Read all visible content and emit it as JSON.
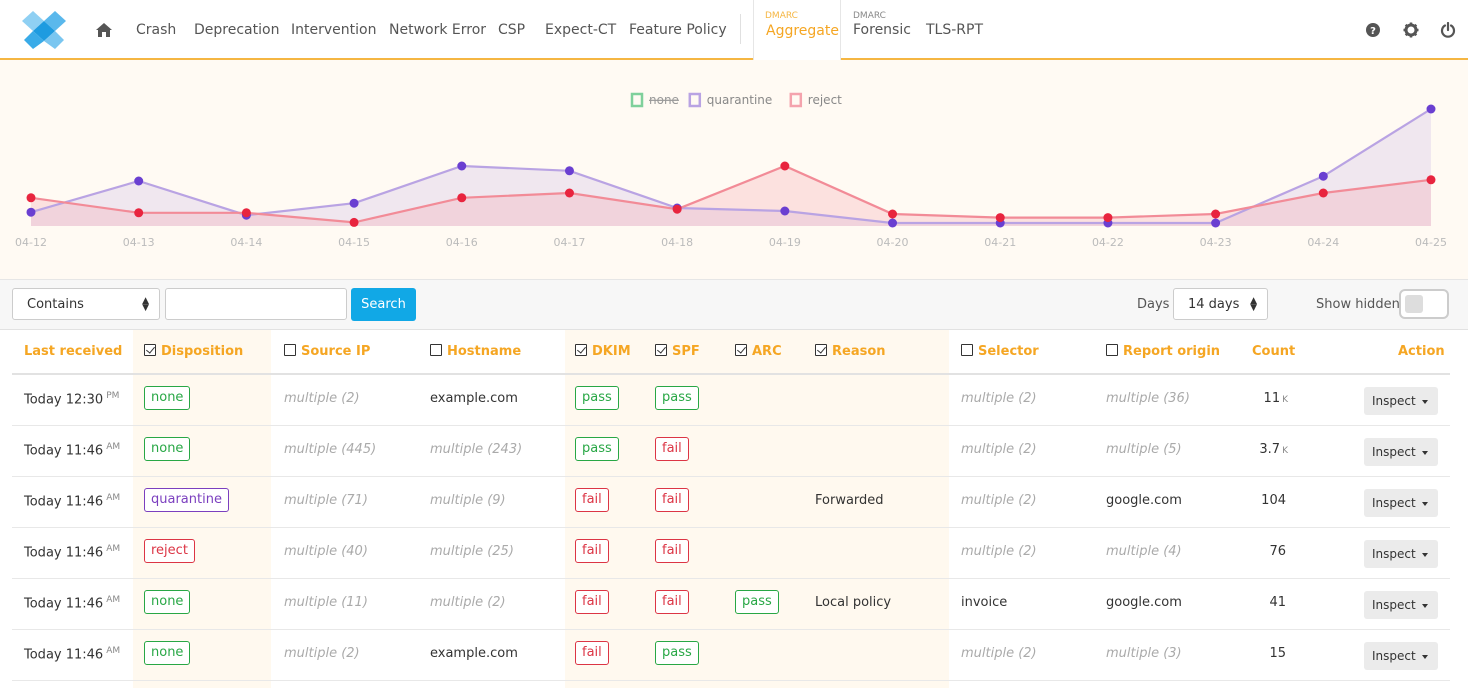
{
  "nav": {
    "items": [
      "Crash",
      "Deprecation",
      "Intervention",
      "Network Error",
      "CSP",
      "Expect-CT",
      "Feature Policy"
    ],
    "active_sup": "DMARC",
    "active_label": "Aggregate",
    "forensic_sup": "DMARC",
    "forensic_label": "Forensic",
    "tlsrpt_label": "TLS-RPT"
  },
  "chart_data": {
    "type": "area",
    "categories": [
      "04-12",
      "04-13",
      "04-14",
      "04-15",
      "04-16",
      "04-17",
      "04-18",
      "04-19",
      "04-20",
      "04-21",
      "04-22",
      "04-23",
      "04-24",
      "04-25"
    ],
    "legend": [
      {
        "name": "none",
        "color": "#7fd09b",
        "hidden": true
      },
      {
        "name": "quarantine",
        "color": "#b9a3e3",
        "hidden": false
      },
      {
        "name": "reject",
        "color": "#f4a3ad",
        "hidden": false
      }
    ],
    "series": [
      {
        "name": "quarantine",
        "line_color": "#b9a3e3",
        "fill": "rgba(185,163,227,0.22)",
        "point_color": "#6a3fd1",
        "values": [
          2.3,
          7.5,
          1.8,
          3.8,
          10.0,
          9.2,
          3.0,
          2.5,
          0.5,
          0.5,
          0.5,
          0.5,
          8.3,
          19.5
        ]
      },
      {
        "name": "reject",
        "line_color": "#f28b97",
        "fill": "rgba(244,163,173,0.28)",
        "point_color": "#e8243e",
        "values": [
          4.7,
          2.2,
          2.2,
          0.6,
          4.7,
          5.5,
          2.8,
          10.0,
          2.0,
          1.4,
          1.4,
          2.0,
          5.5,
          7.7
        ]
      }
    ],
    "ylim": [
      0,
      21
    ]
  },
  "filter": {
    "mode": "Contains",
    "query": "",
    "search_label": "Search",
    "days_label": "Days",
    "days_value": "14 days",
    "show_hidden_label": "Show hidden"
  },
  "table": {
    "headers": {
      "last_received": "Last received",
      "disposition": "Disposition",
      "source_ip": "Source IP",
      "hostname": "Hostname",
      "dkim": "DKIM",
      "spf": "SPF",
      "arc": "ARC",
      "reason": "Reason",
      "selector": "Selector",
      "report_origin": "Report origin",
      "count": "Count",
      "action": "Action"
    },
    "inspect_label": "Inspect",
    "rows": [
      {
        "time": "Today 12:30",
        "ampm": "PM",
        "disposition": "none",
        "source_ip": "multiple (2)",
        "hostname": "example.com",
        "dkim": "pass",
        "spf": "pass",
        "arc": "",
        "reason": "",
        "selector": "multiple (2)",
        "origin": "multiple (36)",
        "count": "11",
        "count_unit": "K"
      },
      {
        "time": "Today 11:46",
        "ampm": "AM",
        "disposition": "none",
        "source_ip": "multiple (445)",
        "hostname": "multiple (243)",
        "dkim": "pass",
        "spf": "fail",
        "arc": "",
        "reason": "",
        "selector": "multiple (2)",
        "origin": "multiple (5)",
        "count": "3.7",
        "count_unit": "K"
      },
      {
        "time": "Today 11:46",
        "ampm": "AM",
        "disposition": "quarantine",
        "source_ip": "multiple (71)",
        "hostname": "multiple (9)",
        "dkim": "fail",
        "spf": "fail",
        "arc": "",
        "reason": "Forwarded",
        "selector": "multiple (2)",
        "origin": "google.com",
        "count": "104",
        "count_unit": ""
      },
      {
        "time": "Today 11:46",
        "ampm": "AM",
        "disposition": "reject",
        "source_ip": "multiple (40)",
        "hostname": "multiple (25)",
        "dkim": "fail",
        "spf": "fail",
        "arc": "",
        "reason": "",
        "selector": "multiple (2)",
        "origin": "multiple (4)",
        "count": "76",
        "count_unit": ""
      },
      {
        "time": "Today 11:46",
        "ampm": "AM",
        "disposition": "none",
        "source_ip": "multiple (11)",
        "hostname": "multiple (2)",
        "dkim": "fail",
        "spf": "fail",
        "arc": "pass",
        "reason": "Local policy",
        "selector": "invoice",
        "origin": "google.com",
        "count": "41",
        "count_unit": ""
      },
      {
        "time": "Today 11:46",
        "ampm": "AM",
        "disposition": "none",
        "source_ip": "multiple (2)",
        "hostname": "example.com",
        "dkim": "fail",
        "spf": "pass",
        "arc": "",
        "reason": "",
        "selector": "multiple (2)",
        "origin": "multiple (3)",
        "count": "15",
        "count_unit": ""
      }
    ]
  }
}
